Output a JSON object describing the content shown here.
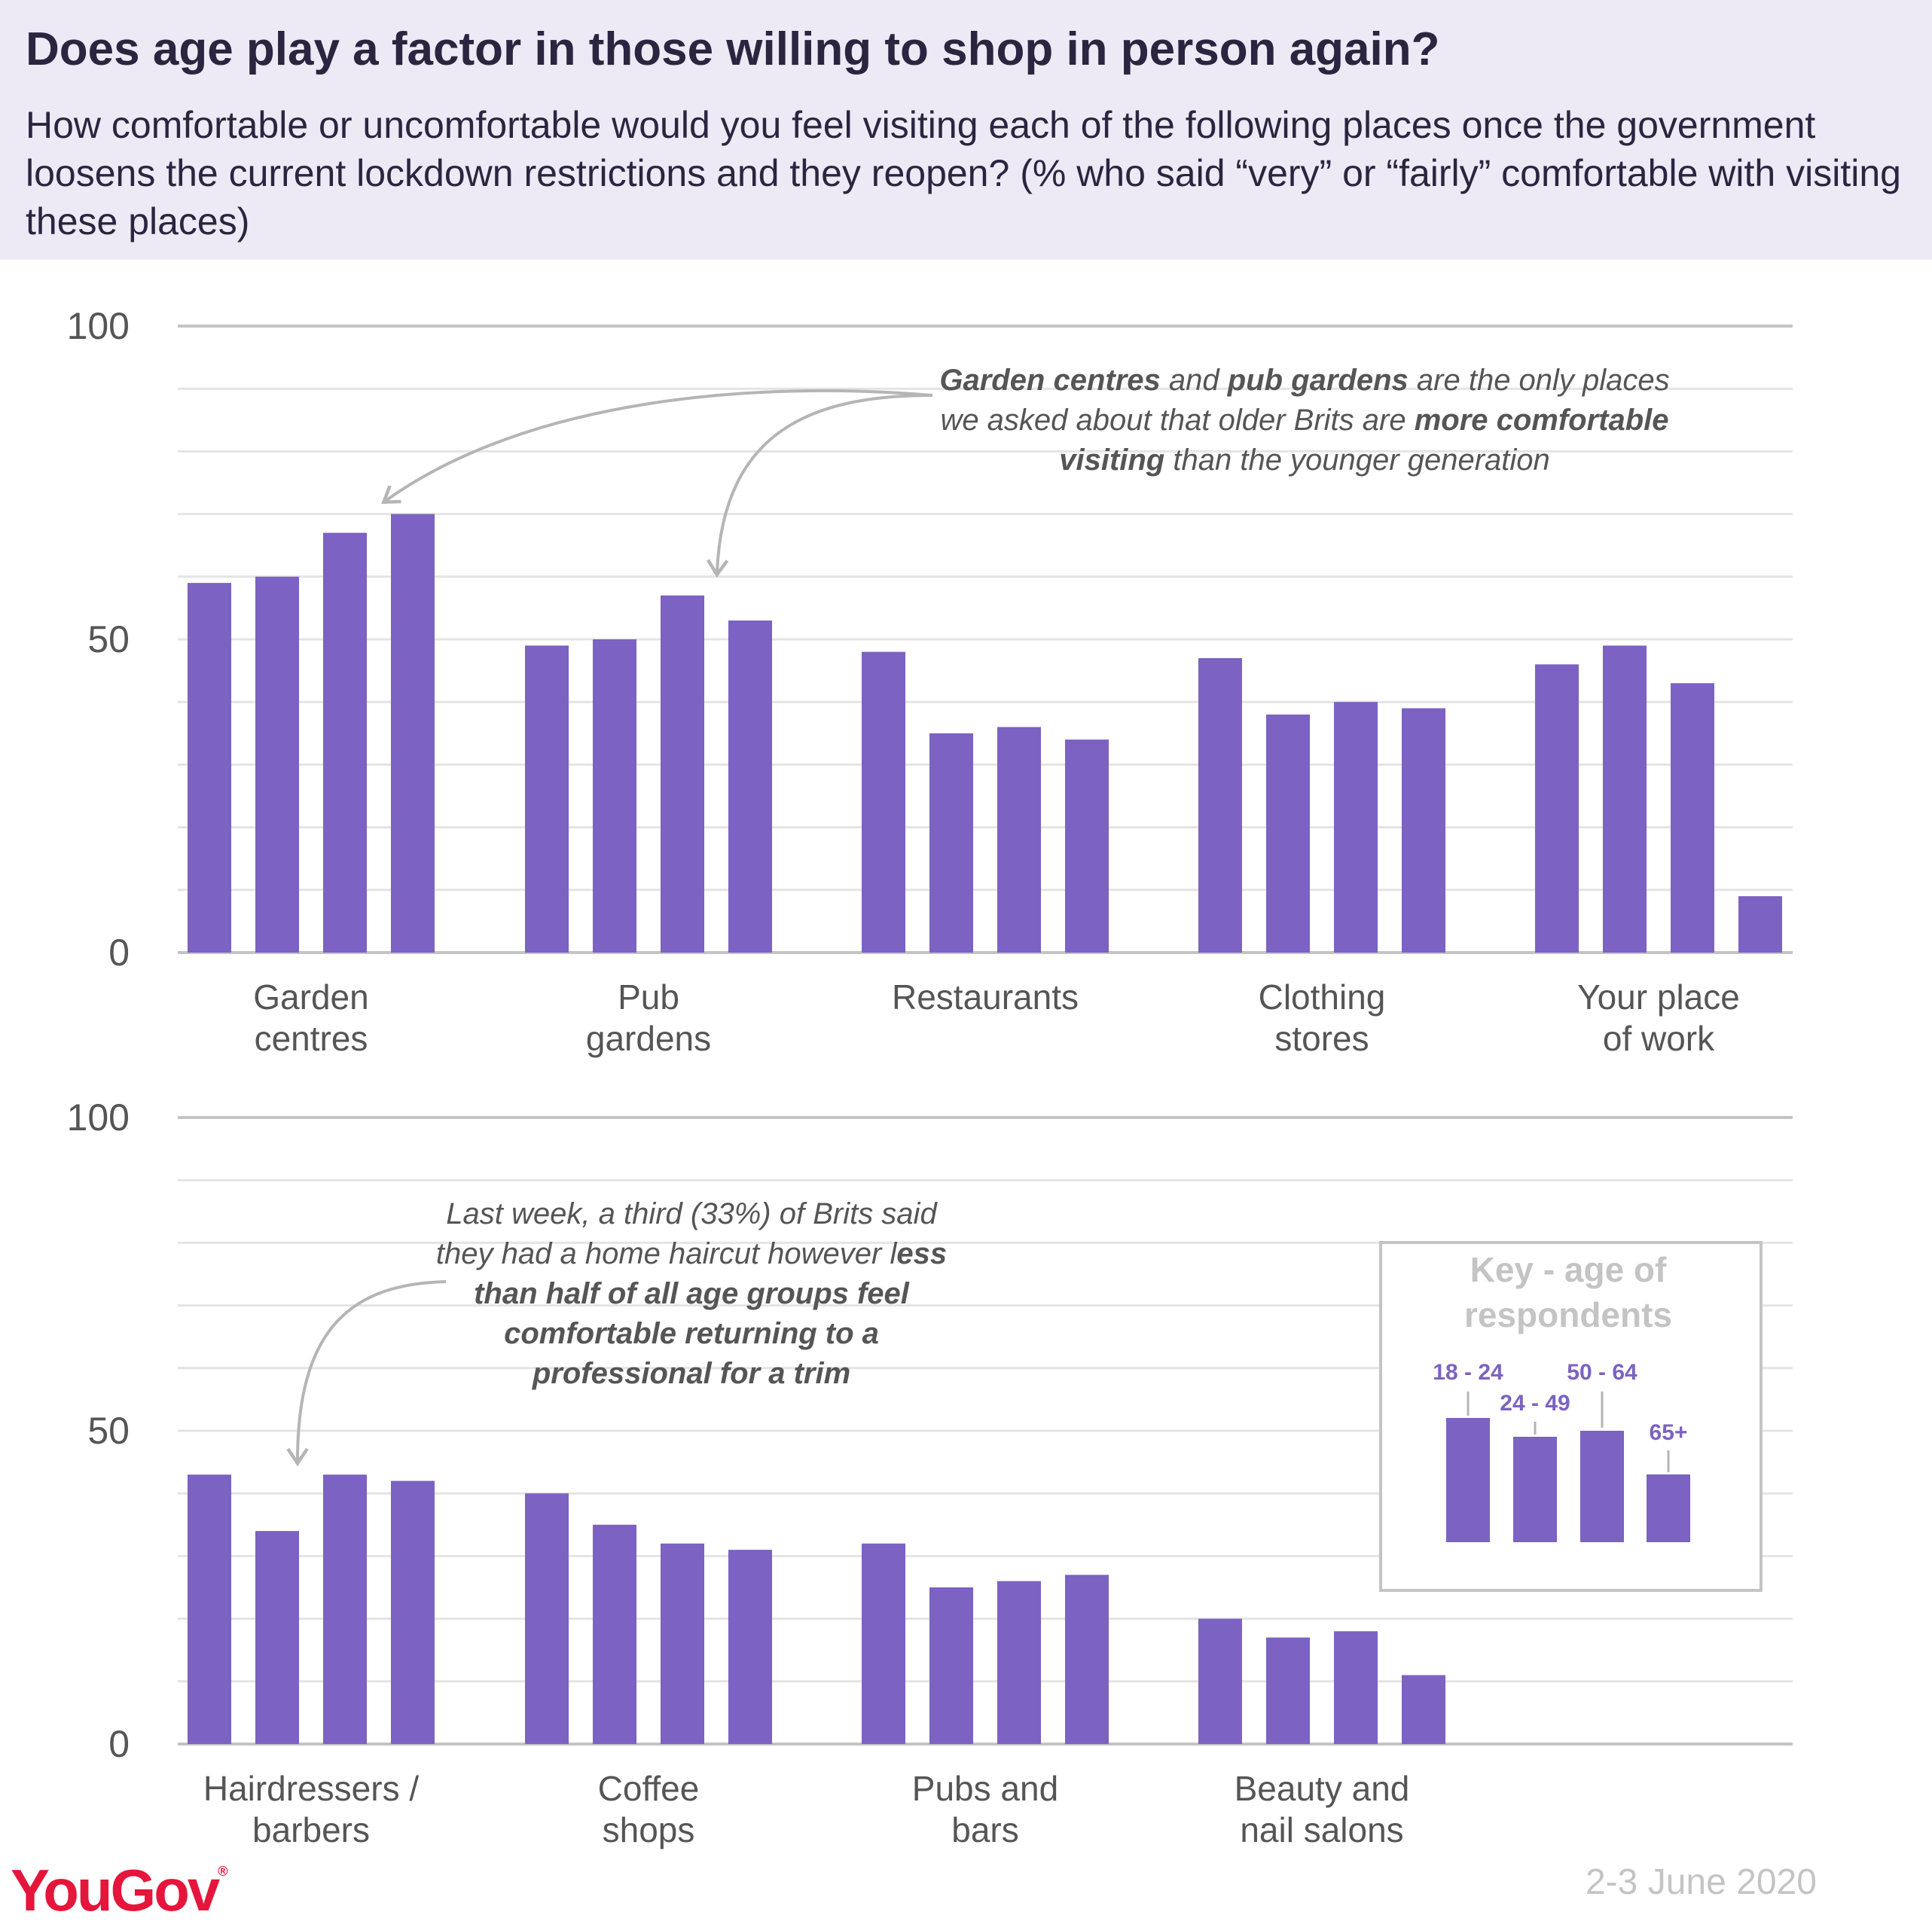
{
  "header": {
    "title": "Does age play a factor in those willing to shop in person again?",
    "subtitle": "How comfortable or uncomfortable would you feel visiting each of the following places once the government loosens the current lockdown restrictions and they reopen? (% who said “very” or “fairly” comfortable with visiting these places)"
  },
  "colors": {
    "bar": "#7c62c2",
    "grid": "#e4e4e4",
    "axis": "#c4c4c4",
    "header_bg": "#edeaf6",
    "logo": "#e5153b"
  },
  "chart_data": [
    {
      "type": "bar",
      "categories": [
        [
          "Garden",
          "centres"
        ],
        [
          "Pub",
          "gardens"
        ],
        [
          "Restaurants"
        ],
        [
          "Clothing",
          "stores"
        ],
        [
          "Your place",
          "of work"
        ]
      ],
      "series": [
        {
          "name": "18 - 24",
          "values": [
            59,
            49,
            48,
            47,
            46
          ]
        },
        {
          "name": "24 - 49",
          "values": [
            60,
            50,
            35,
            38,
            49
          ]
        },
        {
          "name": "50 - 64",
          "values": [
            67,
            57,
            36,
            40,
            43
          ]
        },
        {
          "name": "65+",
          "values": [
            70,
            53,
            34,
            39,
            9
          ]
        }
      ],
      "yticks": [
        "0",
        "50",
        "100"
      ],
      "ylim": [
        0,
        100
      ],
      "grid": true
    },
    {
      "type": "bar",
      "categories": [
        [
          "Hairdressers /",
          "barbers"
        ],
        [
          "Coffee",
          "shops"
        ],
        [
          "Pubs and",
          "bars"
        ],
        [
          "Beauty and",
          "nail salons"
        ]
      ],
      "series": [
        {
          "name": "18 - 24",
          "values": [
            43,
            40,
            32,
            20
          ]
        },
        {
          "name": "24 - 49",
          "values": [
            34,
            35,
            25,
            17
          ]
        },
        {
          "name": "50 - 64",
          "values": [
            43,
            32,
            26,
            18
          ]
        },
        {
          "name": "65+",
          "values": [
            42,
            31,
            27,
            11
          ]
        }
      ],
      "yticks": [
        "0",
        "50",
        "100"
      ],
      "ylim": [
        0,
        100
      ],
      "grid": true
    }
  ],
  "annotations": {
    "top": [
      [
        {
          "t": "Garden centres",
          "b": true
        },
        {
          "t": " and "
        },
        {
          "t": "pub gardens",
          "b": true
        },
        {
          "t": " are the only places"
        }
      ],
      [
        {
          "t": "we asked about that older Brits are "
        },
        {
          "t": "more comfortable",
          "b": true
        }
      ],
      [
        {
          "t": "visiting",
          "b": true
        },
        {
          "t": " than the younger generation"
        }
      ]
    ],
    "bottom": [
      [
        {
          "t": "Last week, a third (33%) of Brits said"
        }
      ],
      [
        {
          "t": "they had a home haircut however l"
        },
        {
          "t": "ess",
          "b": true
        }
      ],
      [
        {
          "t": "than half of all age groups feel",
          "b": true
        }
      ],
      [
        {
          "t": "comfortable returning to a",
          "b": true
        }
      ],
      [
        {
          "t": "professional for a trim",
          "b": true
        }
      ]
    ]
  },
  "key": {
    "title": [
      "Key - age of",
      "respondents"
    ],
    "labels": [
      "18 - 24",
      "24 - 49",
      "50 - 64",
      "65+"
    ]
  },
  "footer": {
    "logo": "YouGov",
    "date": "2-3 June 2020"
  }
}
